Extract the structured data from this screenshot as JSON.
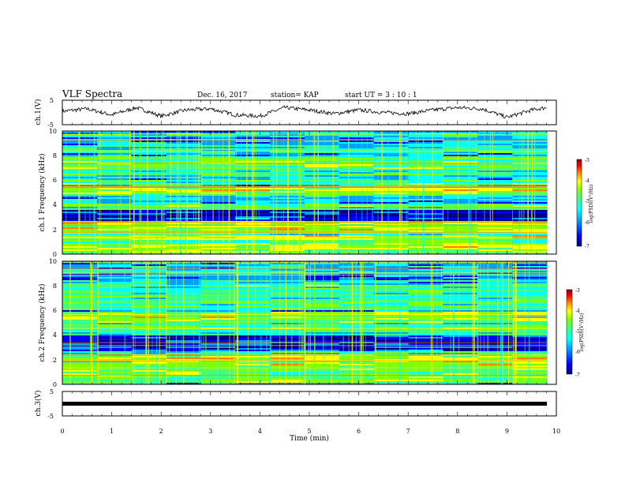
{
  "header": {
    "title": "VLF Spectra",
    "date": "Dec. 16, 2017",
    "station": "station= KAP",
    "start": "start  UT  =   3  : 10 : 1"
  },
  "colorbar": {
    "label": "log(PSD)(V²/Hz)",
    "ticks": [
      "-3",
      "-4",
      "-5",
      "-6",
      "-7"
    ],
    "colors": [
      "#000080",
      "#0000ff",
      "#00a0ff",
      "#00ffff",
      "#40ff80",
      "#80ff00",
      "#ffff00",
      "#ff8000",
      "#ff0000",
      "#8b0000"
    ]
  },
  "chart_data": [
    {
      "type": "line",
      "name": "ch1-waveform",
      "ylabel": "ch.1(V)",
      "ylim": [
        -5,
        5
      ],
      "yticks": [
        "5",
        "-5"
      ],
      "xlim": [
        0,
        10
      ],
      "x": [
        0,
        0.5,
        1,
        1.5,
        2,
        2.5,
        3,
        3.5,
        4,
        4.5,
        5,
        5.5,
        6,
        6.5,
        7,
        7.5,
        8,
        8.5,
        9,
        9.5,
        9.8
      ],
      "y": [
        0.5,
        1.5,
        -1,
        2,
        -1.5,
        1,
        1.5,
        -1,
        -1.5,
        2,
        1,
        -0.5,
        1,
        0,
        -0.5,
        1,
        2,
        1.5,
        -2,
        1,
        2
      ]
    },
    {
      "type": "heatmap",
      "name": "ch1-spectrogram",
      "ylabel": "ch.1 Frequency (kHz)",
      "ylim": [
        0,
        10
      ],
      "yticks": [
        "0",
        "2",
        "4",
        "6",
        "8",
        "10"
      ],
      "xlim": [
        0,
        10
      ],
      "color_scale": [
        -7,
        -3
      ]
    },
    {
      "type": "heatmap",
      "name": "ch2-spectrogram",
      "ylabel": "ch.2 Frequency (kHz)",
      "ylim": [
        0,
        10
      ],
      "yticks": [
        "0",
        "2",
        "4",
        "6",
        "8",
        "10"
      ],
      "xlim": [
        0,
        10
      ],
      "color_scale": [
        -7,
        -3
      ]
    },
    {
      "type": "line",
      "name": "ch3-waveform",
      "ylabel": "ch.3(V)",
      "ylim": [
        -5,
        5
      ],
      "yticks": [
        "5",
        "-5"
      ],
      "xlim": [
        0,
        10
      ],
      "x": [
        0,
        9.8
      ],
      "y": [
        0,
        0
      ],
      "xlabel": "Time (min)",
      "xticks": [
        "0",
        "1",
        "2",
        "3",
        "4",
        "5",
        "6",
        "7",
        "8",
        "9",
        "10"
      ]
    }
  ]
}
